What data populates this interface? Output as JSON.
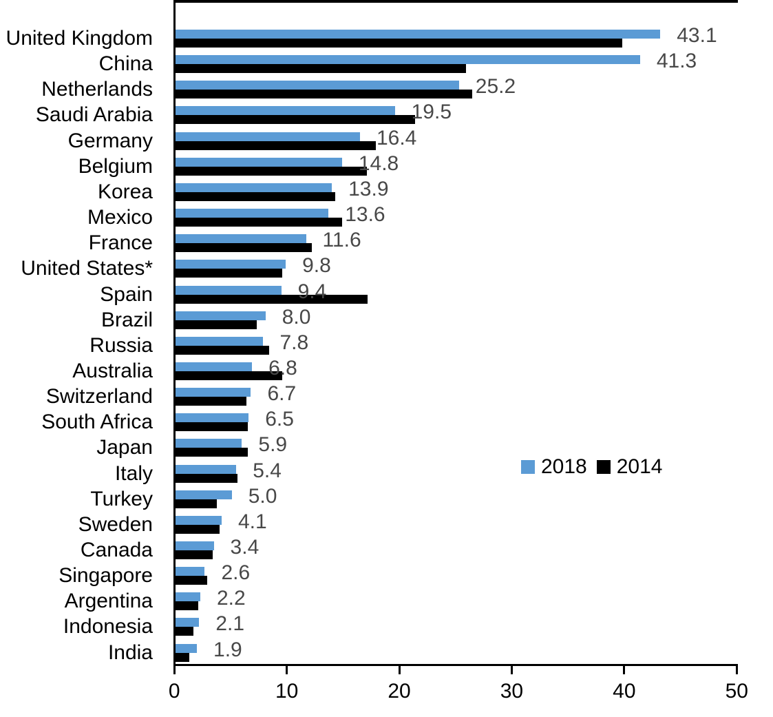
{
  "chart_data": {
    "type": "bar",
    "orientation": "horizontal",
    "title": "",
    "xlabel": "",
    "ylabel": "",
    "xlim": [
      0,
      50
    ],
    "x_ticks": [
      "0",
      "10",
      "20",
      "30",
      "40",
      "50"
    ],
    "x_tick_values": [
      0,
      10,
      20,
      30,
      40,
      50
    ],
    "grid": false,
    "legend_position": "middle-right",
    "categories": [
      "United Kingdom",
      "China",
      "Netherlands",
      "Saudi Arabia",
      "Germany",
      "Belgium",
      "Korea",
      "Mexico",
      "France",
      "United States*",
      "Spain",
      "Brazil",
      "Russia",
      "Australia",
      "Switzerland",
      "South Africa",
      "Japan",
      "Italy",
      "Turkey",
      "Sweden",
      "Canada",
      "Singapore",
      "Argentina",
      "Indonesia",
      "India"
    ],
    "series": [
      {
        "name": "2018",
        "color": "#5B9BD5",
        "values": [
          43.1,
          41.3,
          25.2,
          19.5,
          16.4,
          14.8,
          13.9,
          13.6,
          11.6,
          9.8,
          9.4,
          8.0,
          7.8,
          6.8,
          6.7,
          6.5,
          5.9,
          5.4,
          5.0,
          4.1,
          3.4,
          2.6,
          2.2,
          2.1,
          1.9
        ]
      },
      {
        "name": "2014",
        "color": "#000000",
        "values": [
          39.7,
          25.8,
          26.4,
          21.3,
          17.8,
          17.0,
          14.2,
          14.8,
          12.1,
          9.5,
          17.1,
          7.2,
          8.3,
          9.5,
          6.3,
          6.4,
          6.4,
          5.5,
          3.7,
          3.9,
          3.3,
          2.8,
          2.0,
          1.6,
          1.2
        ]
      }
    ],
    "data_labels": [
      "43.1",
      "41.3",
      "25.2",
      "19.5",
      "16.4",
      "14.8",
      "13.9",
      "13.6",
      "11.6",
      "9.8",
      "9.4",
      "8.0",
      "7.8",
      "6.8",
      "6.7",
      "6.5",
      "5.9",
      "5.4",
      "5.0",
      "4.1",
      "3.4",
      "2.6",
      "2.2",
      "2.1",
      "1.9"
    ],
    "data_label_series": "2018",
    "data_label_color": "#484848",
    "axis_color": "#000000"
  }
}
